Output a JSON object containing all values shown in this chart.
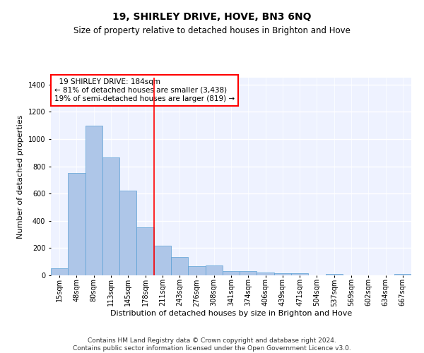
{
  "title": "19, SHIRLEY DRIVE, HOVE, BN3 6NQ",
  "subtitle": "Size of property relative to detached houses in Brighton and Hove",
  "xlabel": "Distribution of detached houses by size in Brighton and Hove",
  "ylabel": "Number of detached properties",
  "footer1": "Contains HM Land Registry data © Crown copyright and database right 2024.",
  "footer2": "Contains public sector information licensed under the Open Government Licence v3.0.",
  "bar_labels": [
    "15sqm",
    "48sqm",
    "80sqm",
    "113sqm",
    "145sqm",
    "178sqm",
    "211sqm",
    "243sqm",
    "276sqm",
    "308sqm",
    "341sqm",
    "374sqm",
    "406sqm",
    "439sqm",
    "471sqm",
    "504sqm",
    "537sqm",
    "569sqm",
    "602sqm",
    "634sqm",
    "667sqm"
  ],
  "bar_values": [
    50,
    750,
    1100,
    865,
    620,
    350,
    220,
    135,
    65,
    70,
    30,
    30,
    20,
    15,
    15,
    0,
    12,
    0,
    0,
    0,
    12
  ],
  "bar_color": "#aec6e8",
  "bar_edgecolor": "#5a9fd4",
  "vline_x": 5.5,
  "vline_color": "red",
  "annotation_text": "  19 SHIRLEY DRIVE: 184sqm\n← 81% of detached houses are smaller (3,438)\n19% of semi-detached houses are larger (819) →",
  "annotation_box_color": "white",
  "annotation_box_edgecolor": "red",
  "ylim": [
    0,
    1450
  ],
  "yticks": [
    0,
    200,
    400,
    600,
    800,
    1000,
    1200,
    1400
  ],
  "bg_color": "#eef2ff",
  "grid_color": "white",
  "title_fontsize": 10,
  "subtitle_fontsize": 8.5,
  "xlabel_fontsize": 8,
  "ylabel_fontsize": 8,
  "tick_fontsize": 7,
  "footer_fontsize": 6.5,
  "annot_fontsize": 7.5
}
